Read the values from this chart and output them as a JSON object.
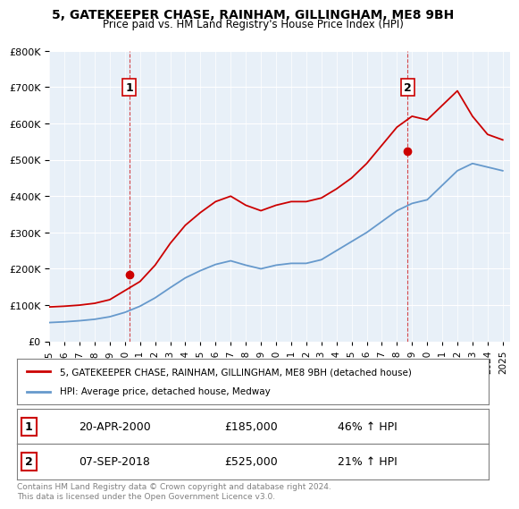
{
  "title": "5, GATEKEEPER CHASE, RAINHAM, GILLINGHAM, ME8 9BH",
  "subtitle": "Price paid vs. HM Land Registry's House Price Index (HPI)",
  "xlabel": "",
  "ylabel": "",
  "ylim": [
    0,
    800000
  ],
  "yticks": [
    0,
    100000,
    200000,
    300000,
    400000,
    500000,
    600000,
    700000,
    800000
  ],
  "ytick_labels": [
    "£0",
    "£100K",
    "£200K",
    "£300K",
    "£400K",
    "£500K",
    "£600K",
    "£700K",
    "£800K"
  ],
  "background_color": "#e8f0f8",
  "plot_background": "#e8f0f8",
  "sale1_date": "20-APR-2000",
  "sale1_price": 185000,
  "sale1_hpi": "46%",
  "sale2_date": "07-SEP-2018",
  "sale2_price": 525000,
  "sale2_hpi": "21%",
  "legend_line1": "5, GATEKEEPER CHASE, RAINHAM, GILLINGHAM, ME8 9BH (detached house)",
  "legend_line2": "HPI: Average price, detached house, Medway",
  "footnote": "Contains HM Land Registry data © Crown copyright and database right 2024.\nThis data is licensed under the Open Government Licence v3.0.",
  "hpi_color": "#6699cc",
  "price_color": "#cc0000",
  "dashed_color": "#cc0000",
  "years": [
    1995,
    1996,
    1997,
    1998,
    1999,
    2000,
    2001,
    2002,
    2003,
    2004,
    2005,
    2006,
    2007,
    2008,
    2009,
    2010,
    2011,
    2012,
    2013,
    2014,
    2015,
    2016,
    2017,
    2018,
    2019,
    2020,
    2021,
    2022,
    2023,
    2024,
    2025
  ],
  "hpi_values": [
    52000,
    54000,
    57000,
    61000,
    68000,
    80000,
    97000,
    120000,
    148000,
    175000,
    195000,
    212000,
    222000,
    210000,
    200000,
    210000,
    215000,
    215000,
    225000,
    250000,
    275000,
    300000,
    330000,
    360000,
    380000,
    390000,
    430000,
    470000,
    490000,
    480000,
    470000
  ],
  "price_values": [
    95000,
    97000,
    100000,
    105000,
    115000,
    140000,
    165000,
    210000,
    270000,
    320000,
    355000,
    385000,
    400000,
    375000,
    360000,
    375000,
    385000,
    385000,
    395000,
    420000,
    450000,
    490000,
    540000,
    590000,
    620000,
    610000,
    650000,
    690000,
    620000,
    570000,
    555000
  ],
  "sale1_x": 2000.3,
  "sale2_x": 2018.7
}
